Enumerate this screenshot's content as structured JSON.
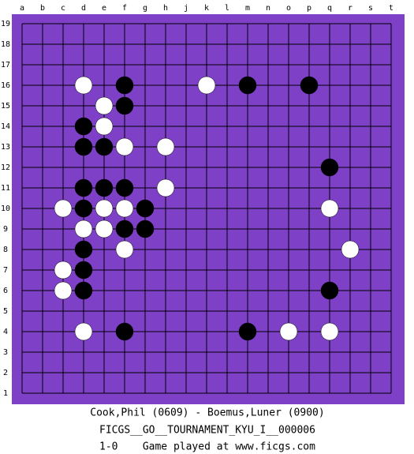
{
  "columns": [
    "a",
    "b",
    "c",
    "d",
    "e",
    "f",
    "g",
    "h",
    "j",
    "k",
    "l",
    "m",
    "n",
    "o",
    "p",
    "q",
    "r",
    "s",
    "t"
  ],
  "rows": [
    19,
    18,
    17,
    16,
    15,
    14,
    13,
    12,
    11,
    10,
    9,
    8,
    7,
    6,
    5,
    4,
    3,
    2,
    1
  ],
  "stones": [
    {
      "col": "d",
      "row": 16,
      "color": "white"
    },
    {
      "col": "k",
      "row": 16,
      "color": "white"
    },
    {
      "col": "e",
      "row": 15,
      "color": "white"
    },
    {
      "col": "e",
      "row": 14,
      "color": "white"
    },
    {
      "col": "f",
      "row": 13,
      "color": "white"
    },
    {
      "col": "h",
      "row": 13,
      "color": "white"
    },
    {
      "col": "h",
      "row": 11,
      "color": "white"
    },
    {
      "col": "c",
      "row": 10,
      "color": "white"
    },
    {
      "col": "e",
      "row": 10,
      "color": "white"
    },
    {
      "col": "f",
      "row": 10,
      "color": "white"
    },
    {
      "col": "q",
      "row": 10,
      "color": "white"
    },
    {
      "col": "d",
      "row": 9,
      "color": "white"
    },
    {
      "col": "e",
      "row": 9,
      "color": "white"
    },
    {
      "col": "r",
      "row": 8,
      "color": "white"
    },
    {
      "col": "f",
      "row": 8,
      "color": "white"
    },
    {
      "col": "c",
      "row": 7,
      "color": "white"
    },
    {
      "col": "c",
      "row": 6,
      "color": "white"
    },
    {
      "col": "d",
      "row": 4,
      "color": "white"
    },
    {
      "col": "o",
      "row": 4,
      "color": "white"
    },
    {
      "col": "q",
      "row": 4,
      "color": "white"
    },
    {
      "col": "f",
      "row": 16,
      "color": "black"
    },
    {
      "col": "m",
      "row": 16,
      "color": "black"
    },
    {
      "col": "p",
      "row": 16,
      "color": "black"
    },
    {
      "col": "f",
      "row": 15,
      "color": "black"
    },
    {
      "col": "d",
      "row": 14,
      "color": "black"
    },
    {
      "col": "d",
      "row": 13,
      "color": "black"
    },
    {
      "col": "e",
      "row": 13,
      "color": "black"
    },
    {
      "col": "q",
      "row": 12,
      "color": "black"
    },
    {
      "col": "d",
      "row": 11,
      "color": "black"
    },
    {
      "col": "e",
      "row": 11,
      "color": "black"
    },
    {
      "col": "f",
      "row": 11,
      "color": "black"
    },
    {
      "col": "g",
      "row": 10,
      "color": "black"
    },
    {
      "col": "d",
      "row": 10,
      "color": "black"
    },
    {
      "col": "f",
      "row": 9,
      "color": "black"
    },
    {
      "col": "g",
      "row": 9,
      "color": "black"
    },
    {
      "col": "d",
      "row": 8,
      "color": "black"
    },
    {
      "col": "d",
      "row": 7,
      "color": "black"
    },
    {
      "col": "d",
      "row": 6,
      "color": "black"
    },
    {
      "col": "q",
      "row": 6,
      "color": "black"
    },
    {
      "col": "f",
      "row": 4,
      "color": "black"
    },
    {
      "col": "m",
      "row": 4,
      "color": "black"
    }
  ],
  "footer": {
    "players": "Cook,Phil (0609) - Boemus,Luner (0900)",
    "tournament": "FICGS__GO__TOURNAMENT_KYU_I__000006",
    "result": "1-0    Game played at www.ficgs.com"
  }
}
